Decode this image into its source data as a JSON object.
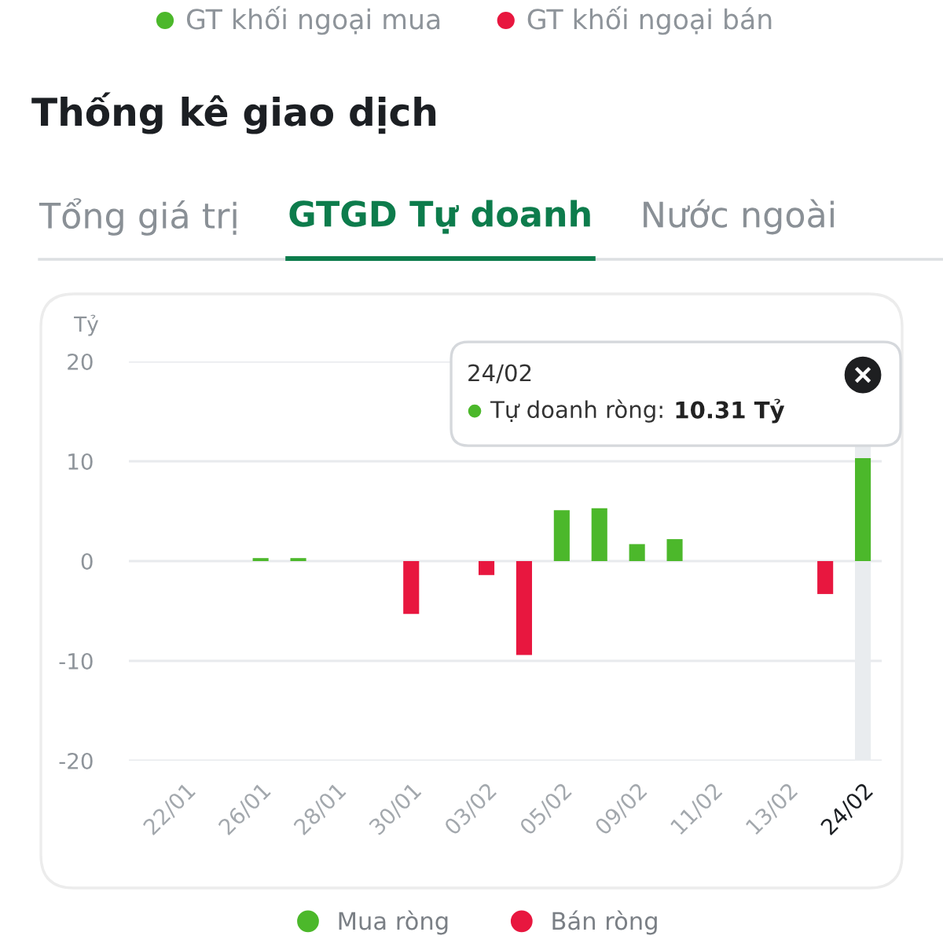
{
  "chart_data": {
    "type": "bar",
    "title": "Thống kê giao dịch",
    "ylabel": "Tỷ",
    "categories": [
      null,
      "22/01",
      null,
      "26/01",
      null,
      "28/01",
      null,
      "30/01",
      null,
      "03/02",
      null,
      "05/02",
      null,
      "09/02",
      null,
      "11/02",
      null,
      "13/02",
      null,
      "24/02"
    ],
    "series": [
      {
        "name": "Mua ròng",
        "color": "#4cb82b",
        "values": [
          null,
          null,
          null,
          0.3,
          0.3,
          null,
          null,
          null,
          null,
          null,
          null,
          5.1,
          5.3,
          1.7,
          2.2,
          null,
          null,
          null,
          null,
          10.31
        ]
      },
      {
        "name": "Bán ròng",
        "color": "#e8173f",
        "values": [
          null,
          null,
          null,
          null,
          null,
          null,
          null,
          -5.3,
          null,
          -1.4,
          -9.4,
          null,
          null,
          null,
          null,
          null,
          null,
          null,
          -3.3,
          null
        ]
      }
    ],
    "stacked": true,
    "ylim": [
      -20,
      20
    ],
    "yticks": [
      -20,
      -10,
      0,
      10,
      20
    ],
    "grid": "y",
    "legend": "bottom",
    "bands": [
      {
        "axis": "x",
        "from": "24/02",
        "to": "24/02",
        "color": "#e9ecef"
      }
    ],
    "annotations": [
      "GT khối ngoại mua",
      "GT khối ngoại bán",
      "Tổng giá trị",
      "GTGD Tự doanh",
      "Nước ngoài",
      "24/02\nTự doanh ròng: 10.31 Tỷ"
    ]
  }
}
